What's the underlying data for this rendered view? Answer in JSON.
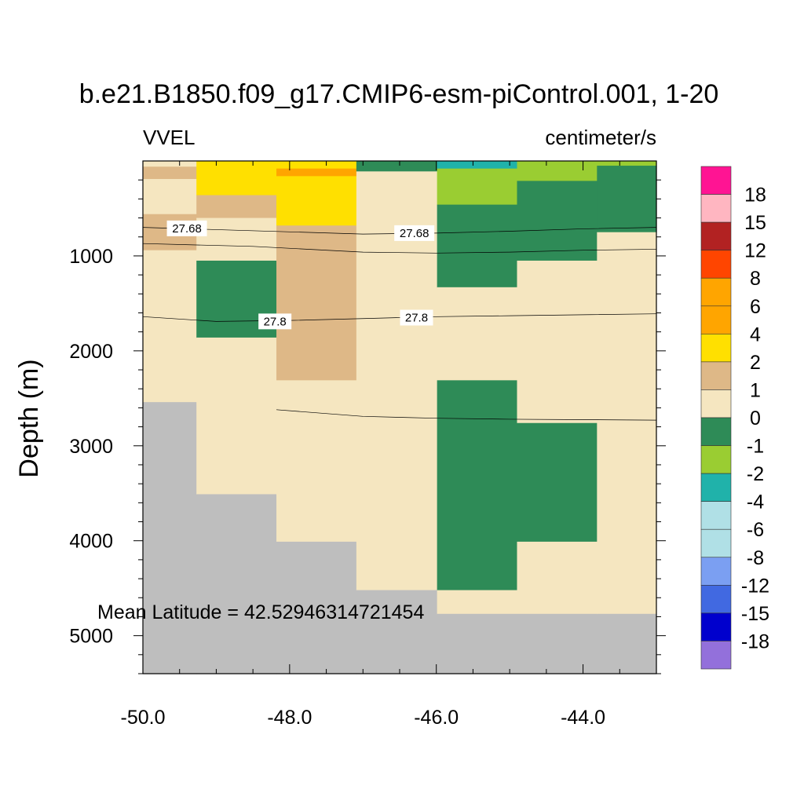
{
  "chart_data": {
    "type": "heatmap",
    "title": "b.e21.B1850.f09_g17.CMIP6-esm-piControl.001, 1-20",
    "left_label": "VVEL",
    "right_label": "centimeter/s",
    "ylabel": "Depth (m)",
    "xlabel": "",
    "xlim": [
      -50.0,
      -43.0
    ],
    "ylim": [
      5400,
      0
    ],
    "y_reversed": true,
    "xticks": [
      "-50.0",
      "-48.0",
      "-46.0",
      "-44.0"
    ],
    "xtick_values": [
      -50.0,
      -48.0,
      -46.0,
      -44.0
    ],
    "yticks": [
      "1000",
      "2000",
      "3000",
      "4000",
      "5000"
    ],
    "ytick_values": [
      1000,
      2000,
      3000,
      4000,
      5000
    ],
    "annotation": "Mean Latitude = 42.52946314721454",
    "land_color": "#bebebe",
    "colorbar": {
      "labels": [
        "18",
        "15",
        "12",
        "8",
        "6",
        "4",
        "2",
        "1",
        "0",
        "-1",
        "-2",
        "-4",
        "-6",
        "-8",
        "-12",
        "-15",
        "-18"
      ],
      "colors": [
        "#ff1493",
        "#ffb6c1",
        "#b22222",
        "#ff4500",
        "#ffa500",
        "#ffa500",
        "#ffe000",
        "#deb887",
        "#f5e6c0",
        "#2e8b57",
        "#9acd32",
        "#20b2aa",
        "#b0e0e6",
        "#b0e0e6",
        "#7b9ff2",
        "#4169e1",
        "#0000cd",
        "#9370db"
      ]
    },
    "columns": [
      {
        "x0": -50.0,
        "x1": -49.27,
        "cells": [
          {
            "d0": 0,
            "d1": 60,
            "color": "#f5e6c0"
          },
          {
            "d0": 60,
            "d1": 190,
            "color": "#deb887"
          },
          {
            "d0": 190,
            "d1": 560,
            "color": "#f5e6c0"
          },
          {
            "d0": 560,
            "d1": 940,
            "color": "#deb887"
          },
          {
            "d0": 940,
            "d1": 2540,
            "color": "#f5e6c0"
          },
          {
            "d0": 2540,
            "d1": 5400,
            "color": "#bebebe"
          }
        ]
      },
      {
        "x0": -49.27,
        "x1": -48.18,
        "cells": [
          {
            "d0": 0,
            "d1": 360,
            "color": "#ffe000"
          },
          {
            "d0": 360,
            "d1": 600,
            "color": "#deb887"
          },
          {
            "d0": 600,
            "d1": 1050,
            "color": "#f5e6c0"
          },
          {
            "d0": 1050,
            "d1": 1860,
            "color": "#2e8b57"
          },
          {
            "d0": 1860,
            "d1": 3510,
            "color": "#f5e6c0"
          },
          {
            "d0": 3510,
            "d1": 5400,
            "color": "#bebebe"
          }
        ]
      },
      {
        "x0": -48.18,
        "x1": -47.09,
        "cells": [
          {
            "d0": 0,
            "d1": 80,
            "color": "#ffe000"
          },
          {
            "d0": 80,
            "d1": 160,
            "color": "#ffa500"
          },
          {
            "d0": 160,
            "d1": 680,
            "color": "#ffe000"
          },
          {
            "d0": 680,
            "d1": 2310,
            "color": "#deb887"
          },
          {
            "d0": 2310,
            "d1": 4010,
            "color": "#f5e6c0"
          },
          {
            "d0": 4010,
            "d1": 5400,
            "color": "#bebebe"
          }
        ]
      },
      {
        "x0": -47.09,
        "x1": -45.99,
        "cells": [
          {
            "d0": 0,
            "d1": 110,
            "color": "#2e8b57"
          },
          {
            "d0": 110,
            "d1": 4520,
            "color": "#f5e6c0"
          },
          {
            "d0": 4520,
            "d1": 5400,
            "color": "#bebebe"
          }
        ]
      },
      {
        "x0": -45.99,
        "x1": -44.9,
        "cells": [
          {
            "d0": 0,
            "d1": 80,
            "color": "#20b2aa"
          },
          {
            "d0": 80,
            "d1": 460,
            "color": "#9acd32"
          },
          {
            "d0": 460,
            "d1": 1330,
            "color": "#2e8b57"
          },
          {
            "d0": 1330,
            "d1": 2310,
            "color": "#f5e6c0"
          },
          {
            "d0": 2310,
            "d1": 4520,
            "color": "#2e8b57"
          },
          {
            "d0": 4520,
            "d1": 4770,
            "color": "#f5e6c0"
          },
          {
            "d0": 4770,
            "d1": 5400,
            "color": "#bebebe"
          }
        ]
      },
      {
        "x0": -44.9,
        "x1": -43.81,
        "cells": [
          {
            "d0": 0,
            "d1": 210,
            "color": "#9acd32"
          },
          {
            "d0": 210,
            "d1": 1050,
            "color": "#2e8b57"
          },
          {
            "d0": 1050,
            "d1": 2760,
            "color": "#f5e6c0"
          },
          {
            "d0": 2760,
            "d1": 4010,
            "color": "#2e8b57"
          },
          {
            "d0": 4010,
            "d1": 4770,
            "color": "#f5e6c0"
          },
          {
            "d0": 4770,
            "d1": 5400,
            "color": "#bebebe"
          }
        ]
      },
      {
        "x0": -43.81,
        "x1": -43.0,
        "cells": [
          {
            "d0": 0,
            "d1": 50,
            "color": "#9acd32"
          },
          {
            "d0": 50,
            "d1": 750,
            "color": "#2e8b57"
          },
          {
            "d0": 750,
            "d1": 4770,
            "color": "#f5e6c0"
          },
          {
            "d0": 4770,
            "d1": 5400,
            "color": "#bebebe"
          }
        ]
      }
    ],
    "contours": [
      {
        "level": "27.68",
        "points": [
          [
            -50.0,
            700
          ],
          [
            -47.0,
            770
          ],
          [
            -46.0,
            760
          ],
          [
            -45.0,
            740
          ],
          [
            -44.0,
            715
          ],
          [
            -43.0,
            700
          ]
        ],
        "labels": [
          {
            "x": -49.4,
            "y": 710
          },
          {
            "x": -46.3,
            "y": 760
          }
        ]
      },
      {
        "level": "",
        "points": [
          [
            -50.0,
            870
          ],
          [
            -48.5,
            900
          ],
          [
            -47.0,
            960
          ],
          [
            -46.0,
            970
          ],
          [
            -45.0,
            960
          ],
          [
            -44.0,
            940
          ],
          [
            -43.0,
            930
          ]
        ],
        "labels": []
      },
      {
        "level": "27.8",
        "points": [
          [
            -50.0,
            1640
          ],
          [
            -49.0,
            1690
          ],
          [
            -48.0,
            1680
          ],
          [
            -47.0,
            1660
          ],
          [
            -46.0,
            1640
          ],
          [
            -45.0,
            1630
          ],
          [
            -44.0,
            1620
          ],
          [
            -43.0,
            1610
          ]
        ],
        "labels": [
          {
            "x": -48.2,
            "y": 1690
          },
          {
            "x": -46.27,
            "y": 1650
          }
        ]
      },
      {
        "level": "",
        "points": [
          [
            -48.18,
            2620
          ],
          [
            -47.0,
            2690
          ],
          [
            -46.0,
            2710
          ],
          [
            -45.0,
            2720
          ],
          [
            -44.0,
            2725
          ],
          [
            -43.0,
            2730
          ]
        ],
        "labels": []
      }
    ]
  }
}
